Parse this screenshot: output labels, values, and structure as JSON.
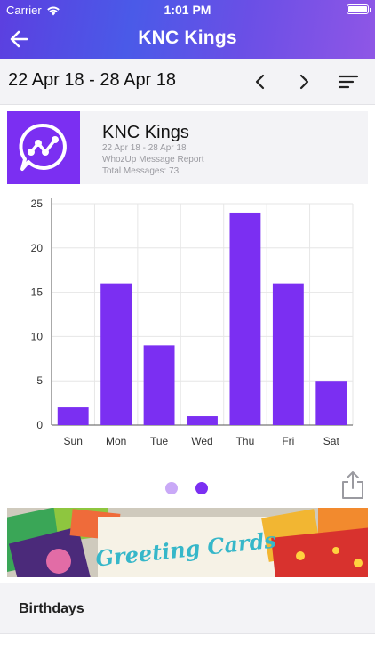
{
  "status_bar": {
    "carrier": "Carrier",
    "time": "1:01 PM"
  },
  "nav": {
    "title": "KNC Kings",
    "back_icon": "arrow-left-icon"
  },
  "date_bar": {
    "range": "22 Apr 18 - 28 Apr 18",
    "prev_icon": "chevron-left-icon",
    "next_icon": "chevron-right-icon",
    "sort_icon": "sort-lines-icon"
  },
  "group": {
    "name": "KNC Kings",
    "date_range": "22 Apr 18 - 28 Apr 18",
    "report_title": "WhozUp Message Report",
    "total_messages": "Total Messages: 73"
  },
  "chart_data": {
    "type": "bar",
    "categories": [
      "Sun",
      "Mon",
      "Tue",
      "Wed",
      "Thu",
      "Fri",
      "Sat"
    ],
    "values": [
      2,
      16,
      9,
      1,
      24,
      16,
      5
    ],
    "ylim": [
      0,
      25
    ],
    "yticks": [
      0,
      5,
      10,
      15,
      20,
      25
    ],
    "bar_color": "#7b2ff2",
    "grid": true
  },
  "pager": {
    "pages": 2,
    "active_index": 1
  },
  "banner": {
    "text": "Greeting Cards"
  },
  "sections": {
    "birthdays_label": "Birthdays"
  },
  "colors": {
    "accent": "#7b2ff2",
    "header_start": "#5c3fe0",
    "header_end": "#8f56e6"
  }
}
